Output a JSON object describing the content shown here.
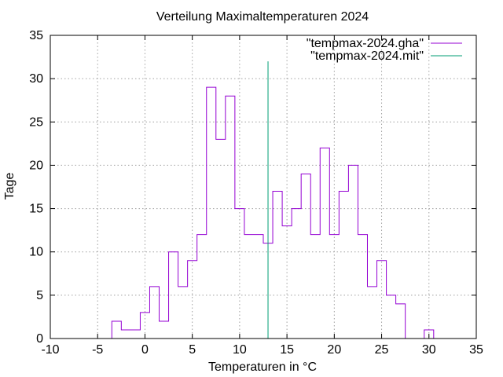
{
  "chart_data": {
    "type": "line",
    "title": "Verteilung Maximaltemperaturen 2024",
    "xlabel": "Temperaturen in °C",
    "ylabel": "Tage",
    "xlim": [
      -10,
      35
    ],
    "ylim": [
      0,
      35
    ],
    "x_ticks": [
      -10,
      -5,
      0,
      5,
      10,
      15,
      20,
      25,
      30,
      35
    ],
    "y_ticks": [
      0,
      5,
      10,
      15,
      20,
      25,
      30,
      35
    ],
    "grid": true,
    "legend_position": "top-right",
    "series": [
      {
        "name": "\"tempmax-2024.gha\"",
        "style": "steps",
        "color": "#9400d3",
        "x": [
          -3.5,
          -2.5,
          -1.5,
          -0.5,
          0.5,
          1.5,
          2.5,
          3.5,
          4.5,
          5.5,
          6.5,
          7.5,
          8.5,
          9.5,
          10.5,
          11.5,
          12.5,
          13.5,
          14.5,
          15.5,
          16.5,
          17.5,
          18.5,
          19.5,
          20.5,
          21.5,
          22.5,
          23.5,
          24.5,
          25.5,
          26.5,
          27.5,
          28.5,
          29.5,
          30.5
        ],
        "values": [
          2,
          1,
          1,
          3,
          6,
          2,
          10,
          6,
          9,
          12,
          29,
          23,
          28,
          15,
          12,
          12,
          11,
          17,
          13,
          15,
          19,
          12,
          22,
          12,
          17,
          20,
          12,
          6,
          9,
          5,
          4,
          0,
          0,
          1,
          0
        ]
      },
      {
        "name": "\"tempmax-2024.mit\"",
        "style": "impulse",
        "color": "#009e73",
        "x": [
          13
        ],
        "values": [
          32
        ]
      }
    ]
  }
}
